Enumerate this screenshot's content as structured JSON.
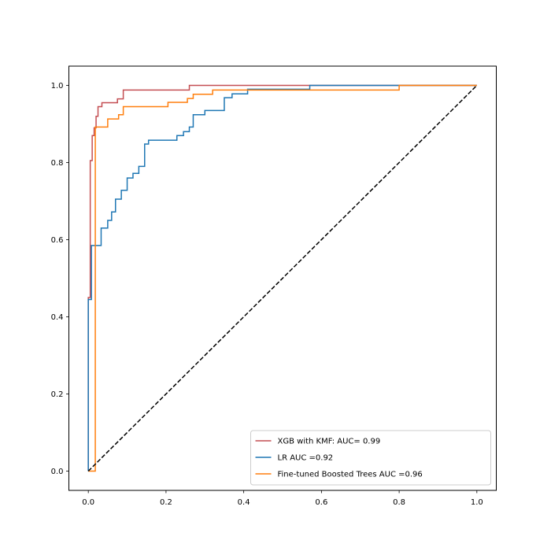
{
  "chart_data": {
    "type": "line",
    "title": "",
    "xlabel": "",
    "ylabel": "",
    "xlim": [
      -0.05,
      1.05
    ],
    "ylim": [
      -0.05,
      1.05
    ],
    "xticks": [
      "0.0",
      "0.2",
      "0.4",
      "0.6",
      "0.8",
      "1.0"
    ],
    "yticks": [
      "0.0",
      "0.2",
      "0.4",
      "0.6",
      "0.8",
      "1.0"
    ],
    "grid": false,
    "legend_position": "lower-right",
    "series": [
      {
        "name": "XGB with KMF: AUC= 0.99",
        "color": "#c44e52",
        "x": [
          0,
          0,
          0.005,
          0.005,
          0.01,
          0.01,
          0.015,
          0.015,
          0.02,
          0.02,
          0.025,
          0.025,
          0.035,
          0.035,
          0.075,
          0.075,
          0.09,
          0.09,
          0.26,
          0.26,
          0.57,
          0.57,
          1.0
        ],
        "y": [
          0,
          0.45,
          0.45,
          0.805,
          0.805,
          0.87,
          0.87,
          0.89,
          0.89,
          0.92,
          0.92,
          0.945,
          0.945,
          0.955,
          0.955,
          0.965,
          0.965,
          0.988,
          0.988,
          1.0,
          1.0,
          1.0,
          1.0
        ]
      },
      {
        "name": "LR AUC =0.92",
        "color": "#1f77b4",
        "x": [
          0,
          0,
          0.008,
          0.008,
          0.033,
          0.033,
          0.05,
          0.05,
          0.06,
          0.06,
          0.07,
          0.07,
          0.085,
          0.085,
          0.1,
          0.1,
          0.115,
          0.115,
          0.13,
          0.13,
          0.145,
          0.145,
          0.155,
          0.155,
          0.228,
          0.228,
          0.245,
          0.245,
          0.26,
          0.26,
          0.27,
          0.27,
          0.3,
          0.3,
          0.35,
          0.35,
          0.37,
          0.37,
          0.41,
          0.41,
          0.42,
          0.42,
          0.57,
          0.57,
          1.0
        ],
        "y": [
          0,
          0.445,
          0.445,
          0.585,
          0.585,
          0.63,
          0.63,
          0.65,
          0.65,
          0.672,
          0.672,
          0.705,
          0.705,
          0.728,
          0.728,
          0.76,
          0.76,
          0.772,
          0.772,
          0.79,
          0.79,
          0.848,
          0.848,
          0.858,
          0.858,
          0.87,
          0.87,
          0.88,
          0.88,
          0.892,
          0.892,
          0.924,
          0.924,
          0.935,
          0.935,
          0.968,
          0.968,
          0.978,
          0.978,
          0.99,
          0.99,
          0.99,
          0.99,
          1.0,
          1.0
        ]
      },
      {
        "name": "Fine-tuned Boosted Trees AUC =0.96",
        "color": "#ff7f0e",
        "x": [
          0,
          0.018,
          0.018,
          0.05,
          0.05,
          0.078,
          0.078,
          0.09,
          0.09,
          0.205,
          0.205,
          0.255,
          0.255,
          0.27,
          0.27,
          0.32,
          0.32,
          0.36,
          0.36,
          0.8,
          0.8,
          1.0
        ],
        "y": [
          0,
          0,
          0.892,
          0.892,
          0.913,
          0.913,
          0.924,
          0.924,
          0.945,
          0.945,
          0.956,
          0.956,
          0.966,
          0.966,
          0.977,
          0.977,
          0.988,
          0.988,
          0.988,
          0.988,
          1.0,
          1.0
        ]
      },
      {
        "name": "",
        "color": "#000000",
        "dashed": true,
        "x": [
          0,
          1
        ],
        "y": [
          0,
          1
        ]
      }
    ]
  }
}
